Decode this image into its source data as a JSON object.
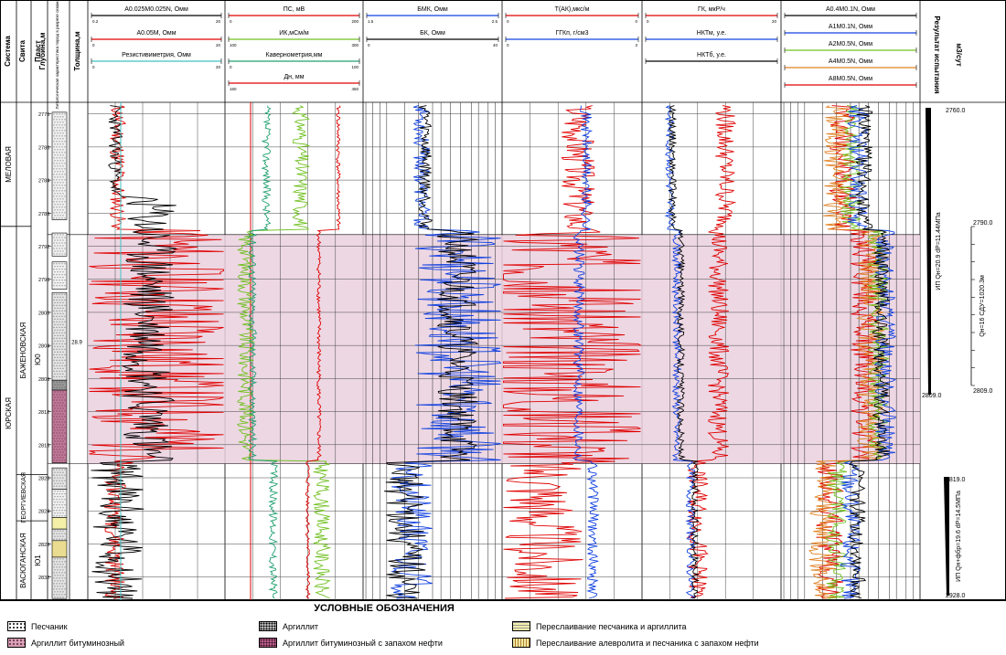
{
  "chart_data": {
    "type": "line",
    "title": "",
    "header_columns": {
      "system": "Система",
      "suite": "Свита",
      "layer": "Пласт",
      "depth": "Глубина,м",
      "lithology": "Литологическая характеристика пород в разрезе скважин",
      "thickness": "Толщина,м",
      "result": "Результат испытания",
      "unit": "м3/сут"
    },
    "tracks": [
      {
        "curves": [
          "A0.025M0.025N, Омм",
          "A0.05M, Омм",
          "Резистивиметрия, Омм"
        ]
      },
      {
        "curves": [
          "ПС, мВ",
          "ИК,мСм/м",
          "Кавернометрия,мм",
          "Дн, мм"
        ]
      },
      {
        "curves": [
          "БМК, Омм",
          "БК, Омм"
        ]
      },
      {
        "curves": [
          "T(АК),мкс/м",
          "ГГКп, г/см3"
        ]
      },
      {
        "curves": [
          "ГК, мкР/ч",
          "НКТм, у.е.",
          "НКТб, у.е."
        ]
      },
      {
        "curves": [
          "A0.4M0.1N, Омм",
          "A1M0.1N, Омм",
          "A2M0.5N, Омм",
          "A4M0.5N, Омм",
          "A8M0.5N, Омм"
        ]
      }
    ],
    "scale_labels": [
      "0.2",
      "20",
      "0",
      "20",
      "0",
      "20",
      "0",
      "200",
      "100",
      "300",
      "0",
      "100",
      "160",
      "450",
      "1.5",
      "2.5",
      "0",
      "40",
      "0",
      "0",
      "0",
      "3",
      "0",
      "20"
    ],
    "depth_ticks": [
      2776,
      2780,
      2784,
      2788,
      2792,
      2796,
      2800,
      2804,
      2808,
      2812,
      2816,
      2820,
      2824,
      2828,
      2832
    ],
    "systems": [
      "МЕЛОВАЯ",
      "ЮРСКАЯ"
    ],
    "suites": [
      "БАЖЕНОВСКАЯ",
      "ГЕОРГИЕВСКАЯ",
      "ВАСЮГАНСКАЯ"
    ],
    "layers": [
      "Ю0",
      "Ю1"
    ],
    "thickness_value": "28.9",
    "tests": [
      {
        "label": "ИП Qн=20.9 dP=11.44МПа",
        "top": "2760.0",
        "bottom": "2809.0"
      },
      {
        "label": "ИП Qн+фбр=19.6 dP=14.5МПа",
        "top": "2819.0",
        "bottom": "2928.0"
      }
    ],
    "side_scale": {
      "top": "2790.0",
      "bottom": "2809.0",
      "label": "Qн=16 СДУ=1020.3м"
    }
  },
  "legend": {
    "title": "УСЛОВНЫЕ ОБОЗНАЧЕНИЯ",
    "items": [
      {
        "label": "Песчаник",
        "color": "#ffffff"
      },
      {
        "label": "Аргиллит битуминозный",
        "color": "#d8a0b4"
      },
      {
        "label": "Аргиллит",
        "color": "#e6e6e6"
      },
      {
        "label": "Аргиллит битуминозный с запахом нефти",
        "color": "#b8608a"
      },
      {
        "label": "Переслаивание песчаника и аргиллита",
        "color": "#f4f0a8"
      },
      {
        "label": "Переслаивание алевролита и песчаника с запахом нефти",
        "color": "#f0e6a0"
      }
    ]
  }
}
